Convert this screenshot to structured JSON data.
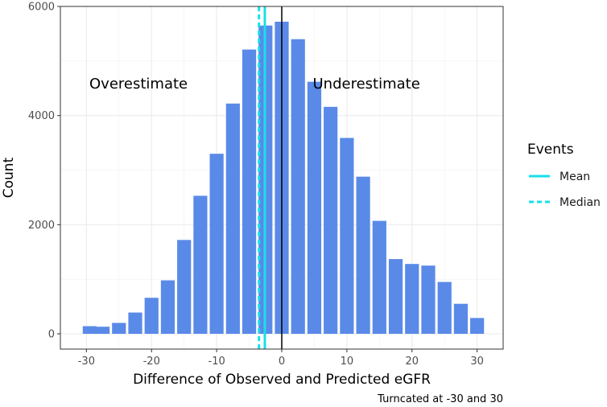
{
  "chart_data": {
    "type": "bar",
    "xlabel": "Difference of Observed and Predicted eGFR",
    "ylabel": "Count",
    "caption": "Turncated at -30 and 30",
    "xlim": [
      -34,
      34
    ],
    "ylim": [
      -280,
      6000
    ],
    "x_ticks": [
      -30,
      -20,
      -10,
      0,
      10,
      20,
      30
    ],
    "y_ticks": [
      0,
      2000,
      4000,
      6000
    ],
    "bin_width": 2.5,
    "bins": [
      {
        "x": -29.5,
        "count": 140
      },
      {
        "x": -27.5,
        "count": 130
      },
      {
        "x": -25.0,
        "count": 200
      },
      {
        "x": -22.5,
        "count": 390
      },
      {
        "x": -20.0,
        "count": 660
      },
      {
        "x": -17.5,
        "count": 980
      },
      {
        "x": -15.0,
        "count": 1720
      },
      {
        "x": -12.5,
        "count": 2530
      },
      {
        "x": -10.0,
        "count": 3300
      },
      {
        "x": -7.5,
        "count": 4220
      },
      {
        "x": -5.0,
        "count": 5210
      },
      {
        "x": -2.5,
        "count": 5650
      },
      {
        "x": 0.0,
        "count": 5720
      },
      {
        "x": 2.5,
        "count": 5400
      },
      {
        "x": 5.0,
        "count": 4620
      },
      {
        "x": 7.5,
        "count": 4160
      },
      {
        "x": 10.0,
        "count": 3590
      },
      {
        "x": 12.5,
        "count": 2880
      },
      {
        "x": 15.0,
        "count": 2070
      },
      {
        "x": 17.5,
        "count": 1370
      },
      {
        "x": 20.0,
        "count": 1280
      },
      {
        "x": 22.5,
        "count": 1250
      },
      {
        "x": 25.0,
        "count": 950
      },
      {
        "x": 27.5,
        "count": 550
      },
      {
        "x": 30.0,
        "count": 290
      }
    ],
    "vlines": [
      {
        "name": "Mean",
        "x": -2.6,
        "style": "solid",
        "color": "#18dfea"
      },
      {
        "name": "Median",
        "x": -3.5,
        "style": "dashed",
        "color": "#18dfea"
      },
      {
        "name": "zero",
        "x": 0,
        "style": "solid",
        "color": "#000000"
      }
    ],
    "annotations": [
      {
        "text": "Overestimate",
        "x": -22,
        "y": 4500
      },
      {
        "text": "Underestimate",
        "x": 13,
        "y": 4500
      }
    ],
    "legend": {
      "title": "Events",
      "placement": "right",
      "entries": [
        {
          "label": "Mean",
          "style": "solid"
        },
        {
          "label": "Median",
          "style": "dashed"
        }
      ]
    },
    "grid": true,
    "bar_color": "#5a8ae8"
  }
}
